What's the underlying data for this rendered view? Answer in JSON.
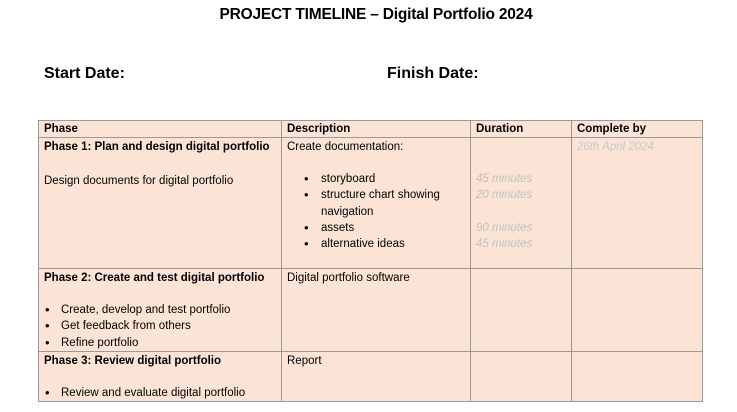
{
  "document": {
    "title": "PROJECT TIMELINE – Digital Portfolio 2024",
    "start_date_label": "Start Date:",
    "finish_date_label": "Finish Date:"
  },
  "table": {
    "headers": [
      "Phase",
      "Description",
      "Duration",
      "Complete by"
    ],
    "rows": [
      {
        "phase_title": "Phase 1:   Plan and design digital portfolio",
        "phase_note": "Design documents for digital portfolio",
        "phase_bullets": [],
        "description_intro": "Create documentation:",
        "description_bullets": [
          "storyboard",
          "structure chart showing navigation",
          "assets",
          "alternative ideas"
        ],
        "durations": [
          "45 minutes",
          "20 minutes",
          "90 minutes",
          "45 minutes"
        ],
        "complete_by": "26th April 2024"
      },
      {
        "phase_title": "Phase 2: Create and test digital portfolio",
        "phase_bullets": [
          "Create, develop and test portfolio",
          "Get feedback from others",
          "Refine portfolio"
        ],
        "description_intro": "Digital portfolio software"
      },
      {
        "phase_title": "Phase 3: Review digital portfolio",
        "phase_bullets": [
          "Review and evaluate digital portfolio"
        ],
        "description_intro": "Report"
      }
    ]
  }
}
